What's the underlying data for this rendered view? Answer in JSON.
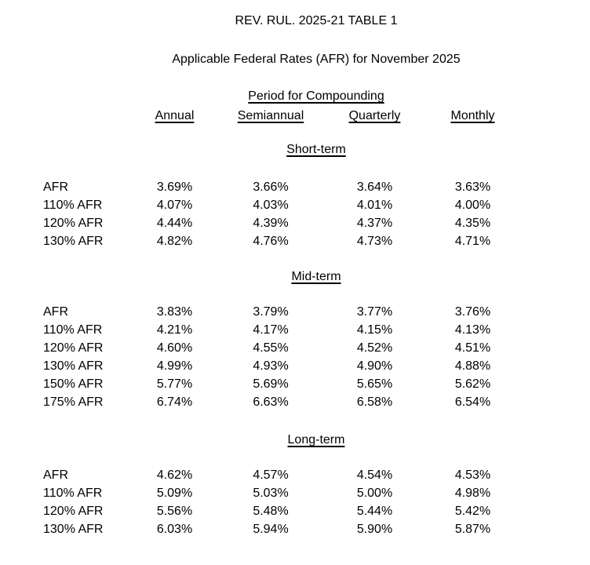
{
  "title": "REV. RUL. 2025-21 TABLE 1",
  "subtitle": "Applicable Federal Rates (AFR) for November 2025",
  "table": {
    "group_header": "Period for Compounding",
    "columns": [
      "Annual",
      "Semiannual",
      "Quarterly",
      "Monthly"
    ],
    "sections": [
      {
        "heading": "Short-term",
        "rows": [
          {
            "label": "AFR",
            "values": [
              "3.69%",
              "3.66%",
              "3.64%",
              "3.63%"
            ]
          },
          {
            "label": "110% AFR",
            "values": [
              "4.07%",
              "4.03%",
              "4.01%",
              "4.00%"
            ]
          },
          {
            "label": "120% AFR",
            "values": [
              "4.44%",
              "4.39%",
              "4.37%",
              "4.35%"
            ]
          },
          {
            "label": "130% AFR",
            "values": [
              "4.82%",
              "4.76%",
              "4.73%",
              "4.71%"
            ]
          }
        ]
      },
      {
        "heading": "Mid-term",
        "rows": [
          {
            "label": "AFR",
            "values": [
              "3.83%",
              "3.79%",
              "3.77%",
              "3.76%"
            ]
          },
          {
            "label": "110% AFR",
            "values": [
              "4.21%",
              "4.17%",
              "4.15%",
              "4.13%"
            ]
          },
          {
            "label": "120% AFR",
            "values": [
              "4.60%",
              "4.55%",
              "4.52%",
              "4.51%"
            ]
          },
          {
            "label": "130% AFR",
            "values": [
              "4.99%",
              "4.93%",
              "4.90%",
              "4.88%"
            ]
          },
          {
            "label": "150% AFR",
            "values": [
              "5.77%",
              "5.69%",
              "5.65%",
              "5.62%"
            ]
          },
          {
            "label": "175% AFR",
            "values": [
              "6.74%",
              "6.63%",
              "6.58%",
              "6.54%"
            ]
          }
        ]
      },
      {
        "heading": "Long-term",
        "rows": [
          {
            "label": "AFR",
            "values": [
              "4.62%",
              "4.57%",
              "4.54%",
              "4.53%"
            ]
          },
          {
            "label": "110% AFR",
            "values": [
              "5.09%",
              "5.03%",
              "5.00%",
              "4.98%"
            ]
          },
          {
            "label": "120% AFR",
            "values": [
              "5.56%",
              "5.48%",
              "5.44%",
              "5.42%"
            ]
          },
          {
            "label": "130% AFR",
            "values": [
              "6.03%",
              "5.94%",
              "5.90%",
              "5.87%"
            ]
          }
        ]
      }
    ]
  },
  "colors": {
    "background": "#ffffff",
    "text": "#000000"
  }
}
